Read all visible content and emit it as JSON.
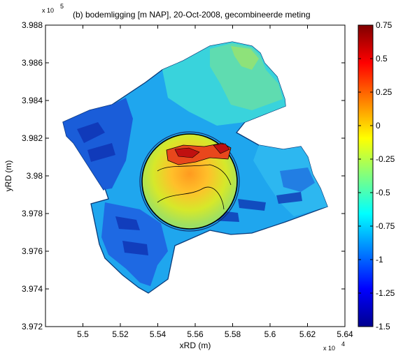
{
  "chart_data": {
    "type": "heatmap",
    "title": "(b) bodemligging [m NAP], 20-Oct-2008, gecombineerde meting",
    "xlabel": "xRD (m)",
    "ylabel": "yRD (m)",
    "x_exponent": {
      "base": "x 10",
      "power": "4"
    },
    "y_exponent": {
      "base": "x 10",
      "power": "5"
    },
    "xlim": [
      5.48,
      5.64
    ],
    "ylim": [
      3.972,
      3.988
    ],
    "xticks": [
      "5.5",
      "5.52",
      "5.54",
      "5.56",
      "5.58",
      "5.6",
      "5.62",
      "5.64"
    ],
    "yticks": [
      "3.972",
      "3.974",
      "3.976",
      "3.978",
      "3.98",
      "3.982",
      "3.984",
      "3.986",
      "3.988"
    ],
    "colorbar": {
      "range": [
        -1.5,
        0.75
      ],
      "ticks": [
        "0.75",
        "0.5",
        "0.25",
        "0",
        "-0.25",
        "-0.5",
        "-0.75",
        "-1",
        "-1.25",
        "-1.5"
      ]
    },
    "legend": "colorbar right",
    "grid": false
  }
}
